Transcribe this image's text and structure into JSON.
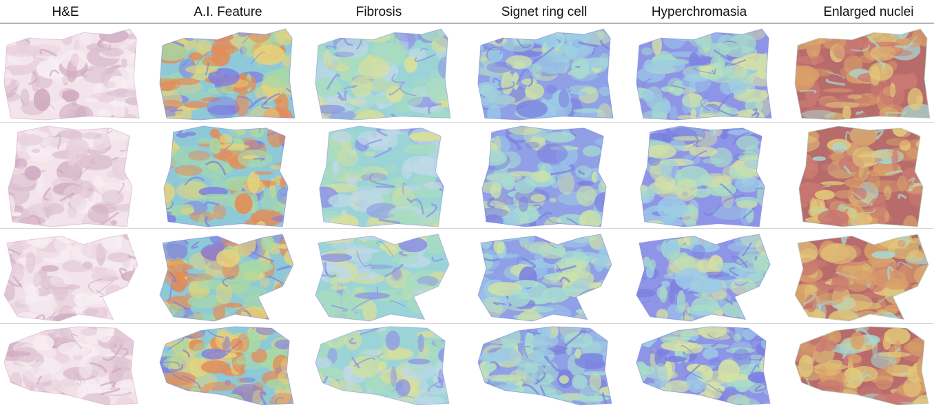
{
  "columns": [
    {
      "label": "H&E",
      "palette": [
        "#f3e3ea",
        "#e9d2de",
        "#dcc0d0",
        "#f7eef2"
      ],
      "accent": "#cfaac0"
    },
    {
      "label": "A.I. Feature",
      "palette": [
        "#8ec9d8",
        "#a6d9a6",
        "#e6d37a",
        "#e48c57"
      ],
      "accent": "#7f7fe0"
    },
    {
      "label": "Fibrosis",
      "palette": [
        "#9bd4d7",
        "#a8dcc0",
        "#d9e09a",
        "#bfd8e8"
      ],
      "accent": "#8d92e3"
    },
    {
      "label": "Signet ring cell",
      "palette": [
        "#8fa0e6",
        "#9ccbe6",
        "#a8ddd0",
        "#cfe3a8"
      ],
      "accent": "#7b7fe0"
    },
    {
      "label": "Hyperchromasia",
      "palette": [
        "#8f95e6",
        "#9ccbe6",
        "#a8ddc8",
        "#d6e2a4"
      ],
      "accent": "#7b7fe0"
    },
    {
      "label": "Enlarged nuclei",
      "palette": [
        "#b86b6b",
        "#c97a72",
        "#d9a06a",
        "#e2c97a"
      ],
      "accent": "#a8d8d2"
    }
  ],
  "rows": [
    {
      "id": "specimen-1"
    },
    {
      "id": "specimen-2"
    },
    {
      "id": "specimen-3"
    },
    {
      "id": "specimen-4"
    }
  ]
}
